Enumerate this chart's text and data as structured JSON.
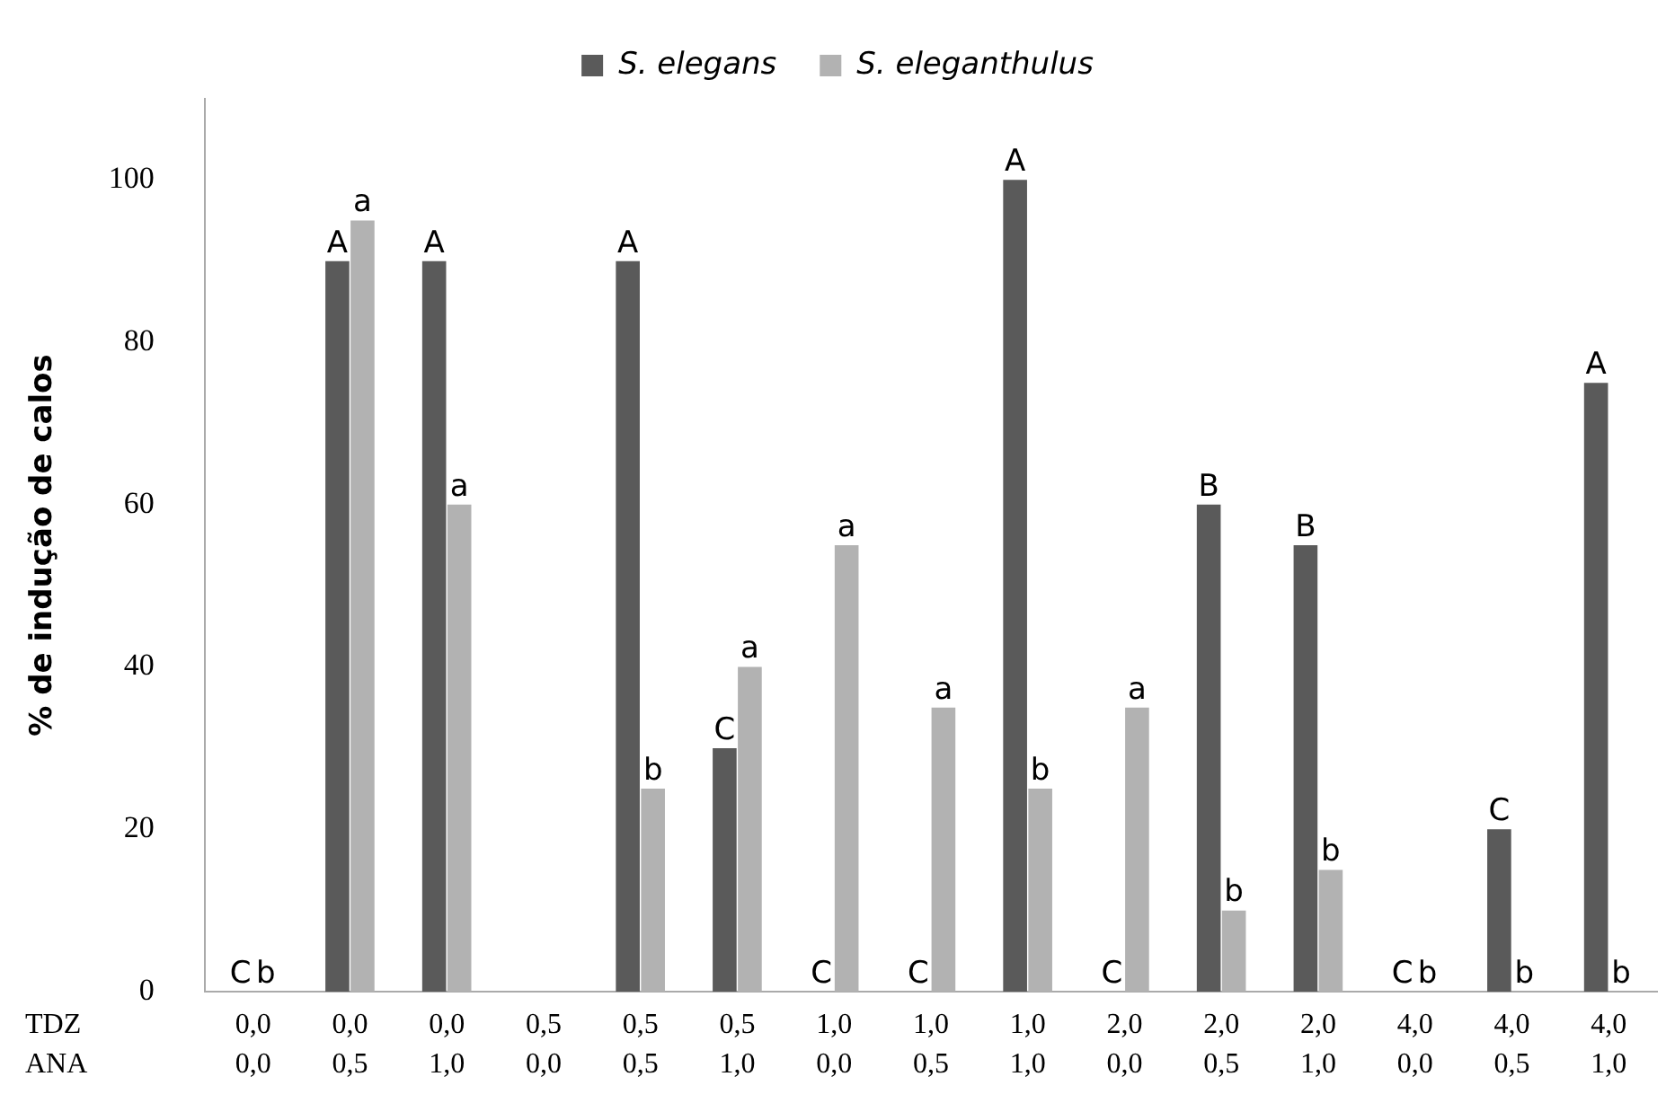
{
  "chart_data": {
    "type": "bar",
    "ylabel": "% de indução de calos",
    "categories": [
      "0,0\n0,0",
      "0,0\n0,5",
      "0,0\n1,0",
      "0,5\n0,0",
      "0,5\n0,5",
      "0,5\n1,0",
      "1,0\n0,0",
      "1,0\n0,5",
      "1,0\n1,0",
      "2,0\n0,0",
      "2,0\n0,5",
      "2,0\n1,0",
      "4,0\n0,0",
      "4,0\n0,5",
      "4,0\n1,0"
    ],
    "series": [
      {
        "name": "S. elegans",
        "color": "#5a5a5a",
        "values": [
          0,
          90,
          90,
          null,
          90,
          30,
          0,
          0,
          100,
          0,
          60,
          55,
          0,
          20,
          75
        ],
        "value_labels": [
          "C",
          "A",
          "A",
          null,
          "A",
          "C",
          "C",
          "C",
          "A",
          "C",
          "B",
          "B",
          "C",
          "C",
          "A"
        ]
      },
      {
        "name": "S. eleganthulus",
        "color": "#b2b2b2",
        "values": [
          0,
          95,
          60,
          null,
          25,
          40,
          55,
          35,
          25,
          35,
          10,
          15,
          0,
          0,
          0
        ],
        "value_labels": [
          "b",
          "a",
          "a",
          null,
          "b",
          "a",
          "a",
          "a",
          "b",
          "a",
          "b",
          "b",
          "b",
          "b",
          "b"
        ]
      }
    ],
    "annotations": [
      "TDZ",
      "ANA"
    ],
    "ylim": [
      0,
      110
    ],
    "yticks": [
      0,
      20,
      40,
      60,
      80,
      100
    ],
    "grid": false,
    "legend": "top"
  }
}
